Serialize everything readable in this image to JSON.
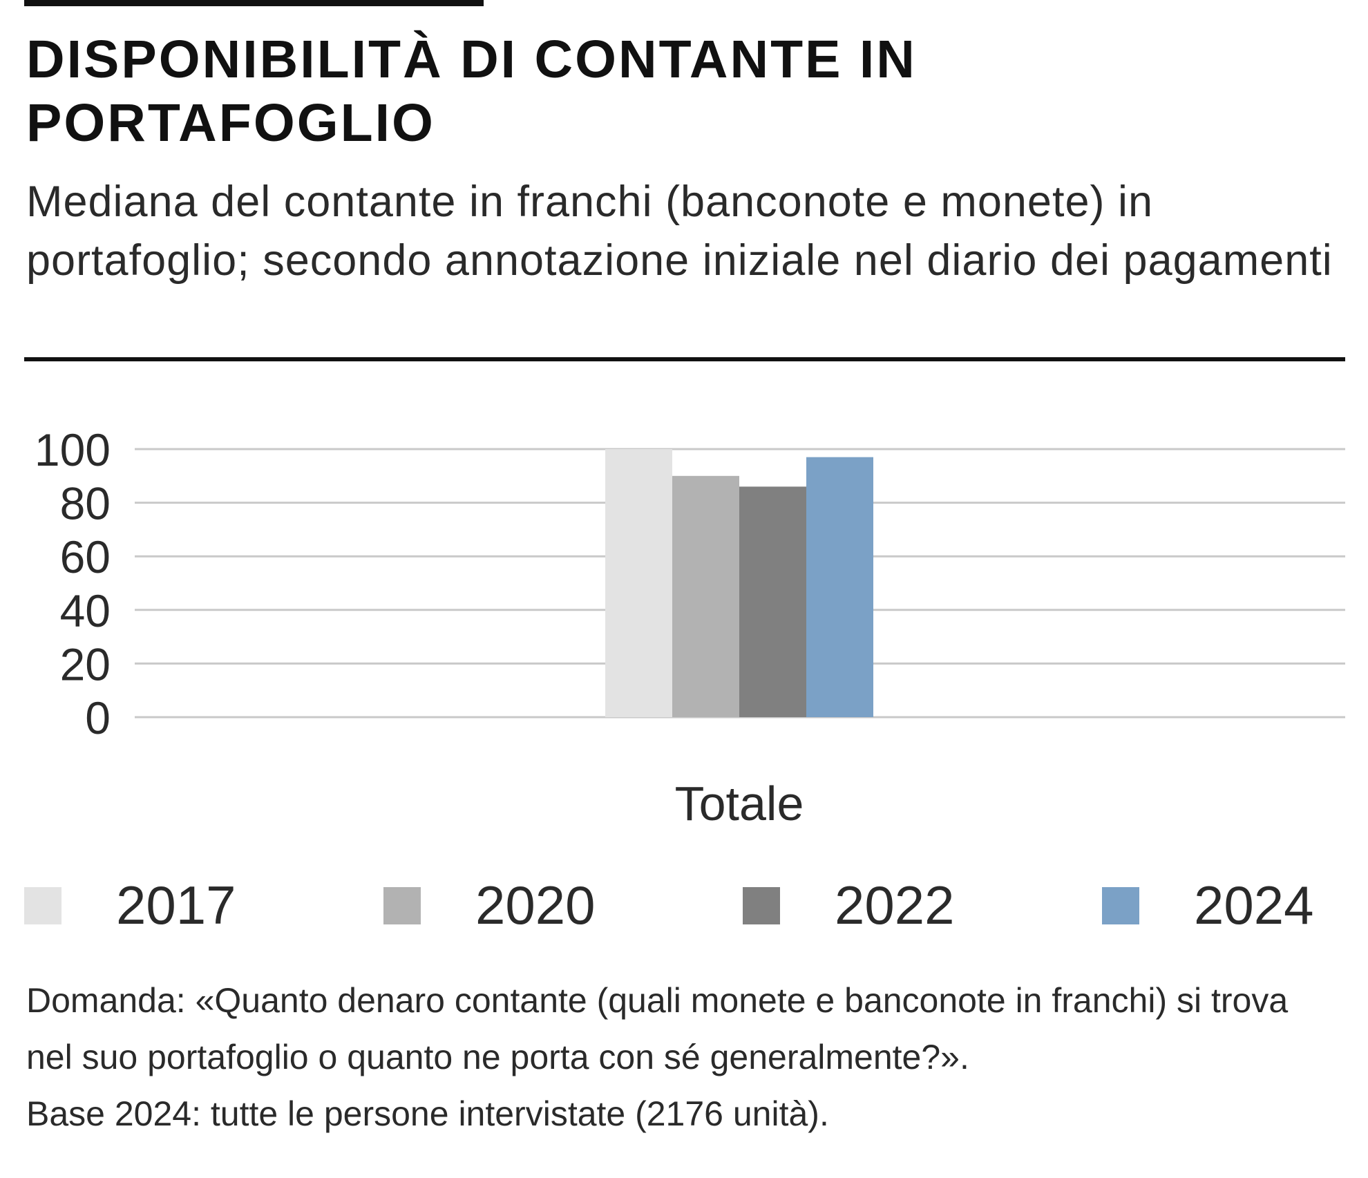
{
  "header": {
    "title": "DISPONIBILITÀ DI CONTANTE IN PORTAFOGLIO",
    "subtitle": "Mediana del contante in franchi (banconote e monete) in portafoglio; secondo annotazione iniziale nel diario dei pagamenti"
  },
  "chart_data": {
    "type": "bar",
    "title": "DISPONIBILITÀ DI CONTANTE IN PORTAFOGLIO",
    "subtitle": "Mediana del contante in franchi (banconote e monete) in portafoglio; secondo annotazione iniziale nel diario dei pagamenti",
    "categories": [
      "Totale"
    ],
    "series": [
      {
        "name": "2017",
        "values": [
          100
        ],
        "color": "#e3e3e3"
      },
      {
        "name": "2020",
        "values": [
          90
        ],
        "color": "#b2b2b2"
      },
      {
        "name": "2022",
        "values": [
          86
        ],
        "color": "#808080"
      },
      {
        "name": "2024",
        "values": [
          97
        ],
        "color": "#7ba1c6"
      }
    ],
    "yticks": [
      "100",
      "80",
      "60",
      "40",
      "20",
      "0"
    ],
    "ylim": [
      0,
      100
    ],
    "xlabel": "",
    "ylabel": "",
    "grid": true,
    "legend_position": "bottom"
  },
  "notes": {
    "question": "Domanda: «Quanto denaro contante (quali monete e banconote in franchi) si trova nel suo portafoglio o quanto ne porta con sé generalmente?».",
    "base": "Base 2024: tutte le persone intervistate (2176 unità)."
  }
}
